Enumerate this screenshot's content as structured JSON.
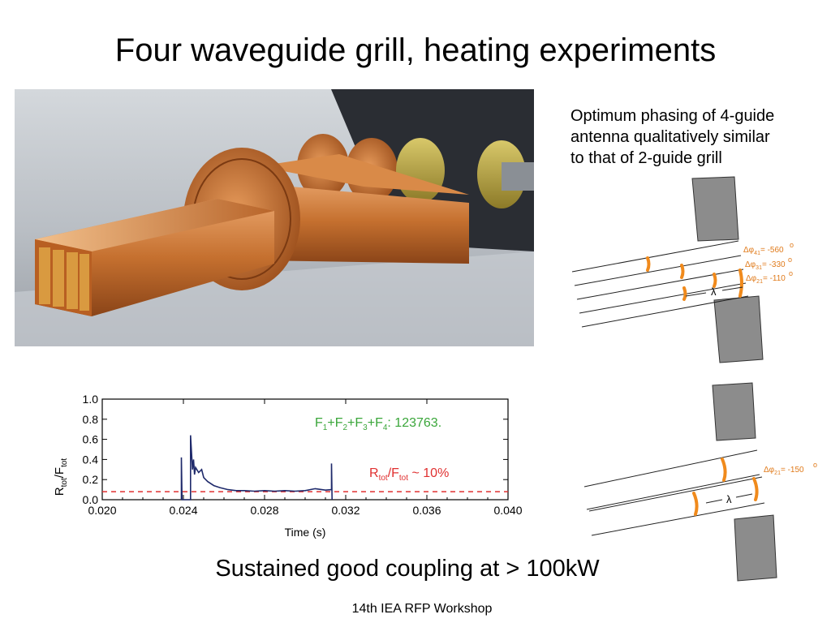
{
  "slide": {
    "title": "Four waveguide grill, heating experiments",
    "note_lines": [
      "Optimum phasing of 4-guide",
      "antenna qualitatively similar",
      "to that of 2-guide grill"
    ],
    "subtitle": "Sustained good coupling at > 100kW",
    "footer": "14th IEA RFP Workshop"
  },
  "diagram_top": {
    "labels": [
      {
        "sub": "41",
        "value": "= -560"
      },
      {
        "sub": "31",
        "value": "= -330"
      },
      {
        "sub": "21",
        "value": "= -110"
      }
    ],
    "lambda": "λ"
  },
  "diagram_bottom": {
    "labels": [
      {
        "sub": "21",
        "value": "= -150"
      }
    ],
    "lambda": "λ"
  },
  "colors": {
    "orange": "#f08a1c",
    "navy": "#1f2a6b",
    "green": "#3aa63a",
    "red": "#e03030",
    "block": "#8c8c8c"
  },
  "chart_data": {
    "type": "line",
    "xlabel": "Time (s)",
    "ylabel_main": "R",
    "ylabel_sub1": "tot",
    "ylabel_mid": "/F",
    "ylabel_sub2": "tot",
    "xlim": [
      0.02,
      0.04
    ],
    "ylim": [
      0.0,
      1.0
    ],
    "xticks": [
      0.02,
      0.024,
      0.028,
      0.032,
      0.036,
      0.04
    ],
    "xtick_labels": [
      "0.020",
      "0.024",
      "0.028",
      "0.032",
      "0.036",
      "0.040"
    ],
    "yticks": [
      0.0,
      0.2,
      0.4,
      0.6,
      0.8,
      1.0
    ],
    "ytick_labels": [
      "0.0",
      "0.2",
      "0.4",
      "0.6",
      "0.8",
      "1.0"
    ],
    "annotations": [
      {
        "text": "F1+F2+F3+F4: 123763.",
        "color": "#3aa63a"
      },
      {
        "text": "Rtot/Ftot ~ 10%",
        "color": "#e03030"
      }
    ],
    "reference_level": 0.08,
    "series": [
      {
        "values": [
          [
            0.0239,
            0.0
          ],
          [
            0.0239,
            0.42
          ],
          [
            0.02393,
            0.0
          ],
          [
            0.02435,
            0.0
          ],
          [
            0.02435,
            0.64
          ],
          [
            0.02445,
            0.3
          ],
          [
            0.0245,
            0.4
          ],
          [
            0.02455,
            0.25
          ],
          [
            0.0246,
            0.32
          ],
          [
            0.02475,
            0.27
          ],
          [
            0.0249,
            0.3
          ],
          [
            0.025,
            0.22
          ],
          [
            0.0252,
            0.18
          ],
          [
            0.0255,
            0.14
          ],
          [
            0.0258,
            0.12
          ],
          [
            0.0262,
            0.1
          ],
          [
            0.0266,
            0.09
          ],
          [
            0.027,
            0.09
          ],
          [
            0.0275,
            0.085
          ],
          [
            0.028,
            0.09
          ],
          [
            0.0285,
            0.085
          ],
          [
            0.029,
            0.09
          ],
          [
            0.0295,
            0.085
          ],
          [
            0.03,
            0.09
          ],
          [
            0.0305,
            0.11
          ],
          [
            0.031,
            0.095
          ],
          [
            0.0313,
            0.1
          ],
          [
            0.0313,
            0.36
          ],
          [
            0.03133,
            0.0
          ]
        ]
      }
    ]
  }
}
